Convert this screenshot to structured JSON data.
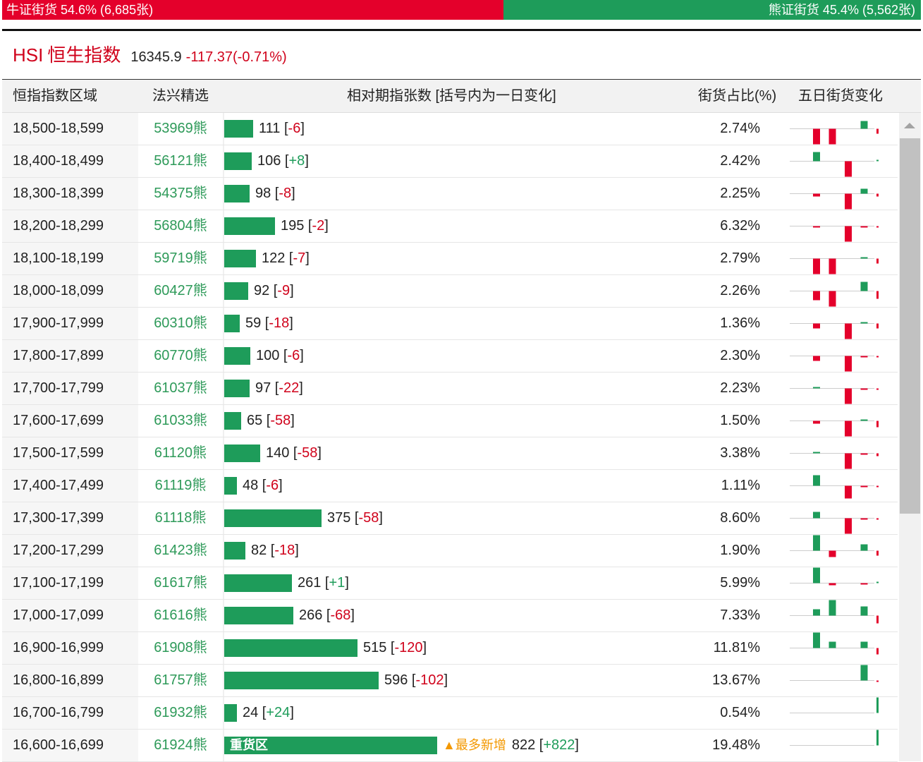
{
  "ratio": {
    "bull_label": "牛证街货 54.6% (6,685张)",
    "bull_fraction": 0.546,
    "bear_label": "熊证街货 45.4% (5,562张)",
    "bull_color": "#e4002b",
    "bear_color": "#1e9c5a"
  },
  "index": {
    "code": "HSI",
    "name": "恒生指数",
    "price": "16345.9",
    "change": "-117.37(-0.71%)"
  },
  "columns": {
    "range": "恒指指数区域",
    "pick": "法兴精选",
    "relative": "相对期指张数 [括号内为一日变化]",
    "share": "街货占比(%)",
    "five_day": "五日街货变化"
  },
  "rows": [
    {
      "range": "18,500-18,599",
      "pick": "53969熊",
      "count": 111,
      "count_text": "111",
      "delta": "-6",
      "pct": "2.74%",
      "spark": [
        -1,
        -1,
        0,
        0.5,
        -0.3
      ]
    },
    {
      "range": "18,400-18,499",
      "pick": "56121熊",
      "count": 106,
      "count_text": "106",
      "delta": "+8",
      "pct": "2.42%",
      "spark": [
        0.6,
        0,
        -1,
        0,
        0.1
      ]
    },
    {
      "range": "18,300-18,399",
      "pick": "54375熊",
      "count": 98,
      "count_text": "98",
      "delta": "-8",
      "pct": "2.25%",
      "spark": [
        -0.2,
        0,
        -1,
        0.3,
        -0.2
      ]
    },
    {
      "range": "18,200-18,299",
      "pick": "56804熊",
      "count": 195,
      "count_text": "195",
      "delta": "-2",
      "pct": "6.32%",
      "spark": [
        -0.1,
        0,
        -1,
        -0.1,
        -0.1
      ]
    },
    {
      "range": "18,100-18,199",
      "pick": "59719熊",
      "count": 122,
      "count_text": "122",
      "delta": "-7",
      "pct": "2.79%",
      "spark": [
        -1,
        -1,
        0,
        0.1,
        -0.3
      ]
    },
    {
      "range": "18,000-18,099",
      "pick": "60427熊",
      "count": 92,
      "count_text": "92",
      "delta": "-9",
      "pct": "2.26%",
      "spark": [
        -0.6,
        -1,
        0,
        0.6,
        -0.5
      ]
    },
    {
      "range": "17,900-17,999",
      "pick": "60310熊",
      "count": 59,
      "count_text": "59",
      "delta": "-18",
      "pct": "1.36%",
      "spark": [
        -0.3,
        0,
        -1,
        0.05,
        -0.3
      ]
    },
    {
      "range": "17,800-17,899",
      "pick": "60770熊",
      "count": 100,
      "count_text": "100",
      "delta": "-6",
      "pct": "2.30%",
      "spark": [
        -0.3,
        0,
        -1,
        -0.05,
        -0.05
      ]
    },
    {
      "range": "17,700-17,799",
      "pick": "61037熊",
      "count": 97,
      "count_text": "97",
      "delta": "-22",
      "pct": "2.23%",
      "spark": [
        0.05,
        0,
        -1,
        -0.1,
        -0.1
      ]
    },
    {
      "range": "17,600-17,699",
      "pick": "61033熊",
      "count": 65,
      "count_text": "65",
      "delta": "-58",
      "pct": "1.50%",
      "spark": [
        -0.2,
        0,
        -1,
        0.1,
        -0.4
      ]
    },
    {
      "range": "17,500-17,599",
      "pick": "61120熊",
      "count": 140,
      "count_text": "140",
      "delta": "-58",
      "pct": "3.38%",
      "spark": [
        0.05,
        0,
        -1,
        -0.1,
        -0.2
      ]
    },
    {
      "range": "17,400-17,499",
      "pick": "61119熊",
      "count": 48,
      "count_text": "48",
      "delta": "-6",
      "pct": "1.11%",
      "spark": [
        0.7,
        0,
        -0.8,
        -0.05,
        -0.05
      ]
    },
    {
      "range": "17,300-17,399",
      "pick": "61118熊",
      "count": 375,
      "count_text": "375",
      "delta": "-58",
      "pct": "8.60%",
      "spark": [
        0.4,
        0,
        -1,
        -0.05,
        -0.05
      ]
    },
    {
      "range": "17,200-17,299",
      "pick": "61423熊",
      "count": 82,
      "count_text": "82",
      "delta": "-18",
      "pct": "1.90%",
      "spark": [
        1,
        -0.4,
        0,
        0.4,
        -0.3
      ]
    },
    {
      "range": "17,100-17,199",
      "pick": "61617熊",
      "count": 261,
      "count_text": "261",
      "delta": "+1",
      "pct": "5.99%",
      "spark": [
        1,
        -0.15,
        0,
        -0.1,
        0.05
      ]
    },
    {
      "range": "17,000-17,099",
      "pick": "61616熊",
      "count": 266,
      "count_text": "266",
      "delta": "-68",
      "pct": "7.33%",
      "spark": [
        0.4,
        1,
        0,
        0.6,
        -0.5
      ]
    },
    {
      "range": "16,900-16,999",
      "pick": "61908熊",
      "count": 515,
      "count_text": "515",
      "delta": "-120",
      "pct": "11.81%",
      "spark": [
        1,
        0.4,
        0,
        0.4,
        -0.4
      ]
    },
    {
      "range": "16,800-16,899",
      "pick": "61757熊",
      "count": 596,
      "count_text": "596",
      "delta": "-102",
      "pct": "13.67%",
      "spark": [
        0,
        0,
        0,
        1,
        -0.1
      ]
    },
    {
      "range": "16,700-16,799",
      "pick": "61932熊",
      "count": 24,
      "count_text": "24",
      "delta": "+24",
      "pct": "0.54%",
      "spark": [
        0,
        0,
        0,
        0,
        1
      ]
    },
    {
      "range": "16,600-16,699",
      "pick": "61924熊",
      "count": 822,
      "count_text": "822",
      "delta": "+822",
      "pct": "19.48%",
      "spark": [
        0,
        0,
        0,
        0,
        1
      ],
      "heavy_label": "重货区",
      "tag": "▲最多新增"
    }
  ],
  "colors": {
    "up": "#1e9c5a",
    "down": "#e4002b",
    "accent": "#d0021b"
  }
}
